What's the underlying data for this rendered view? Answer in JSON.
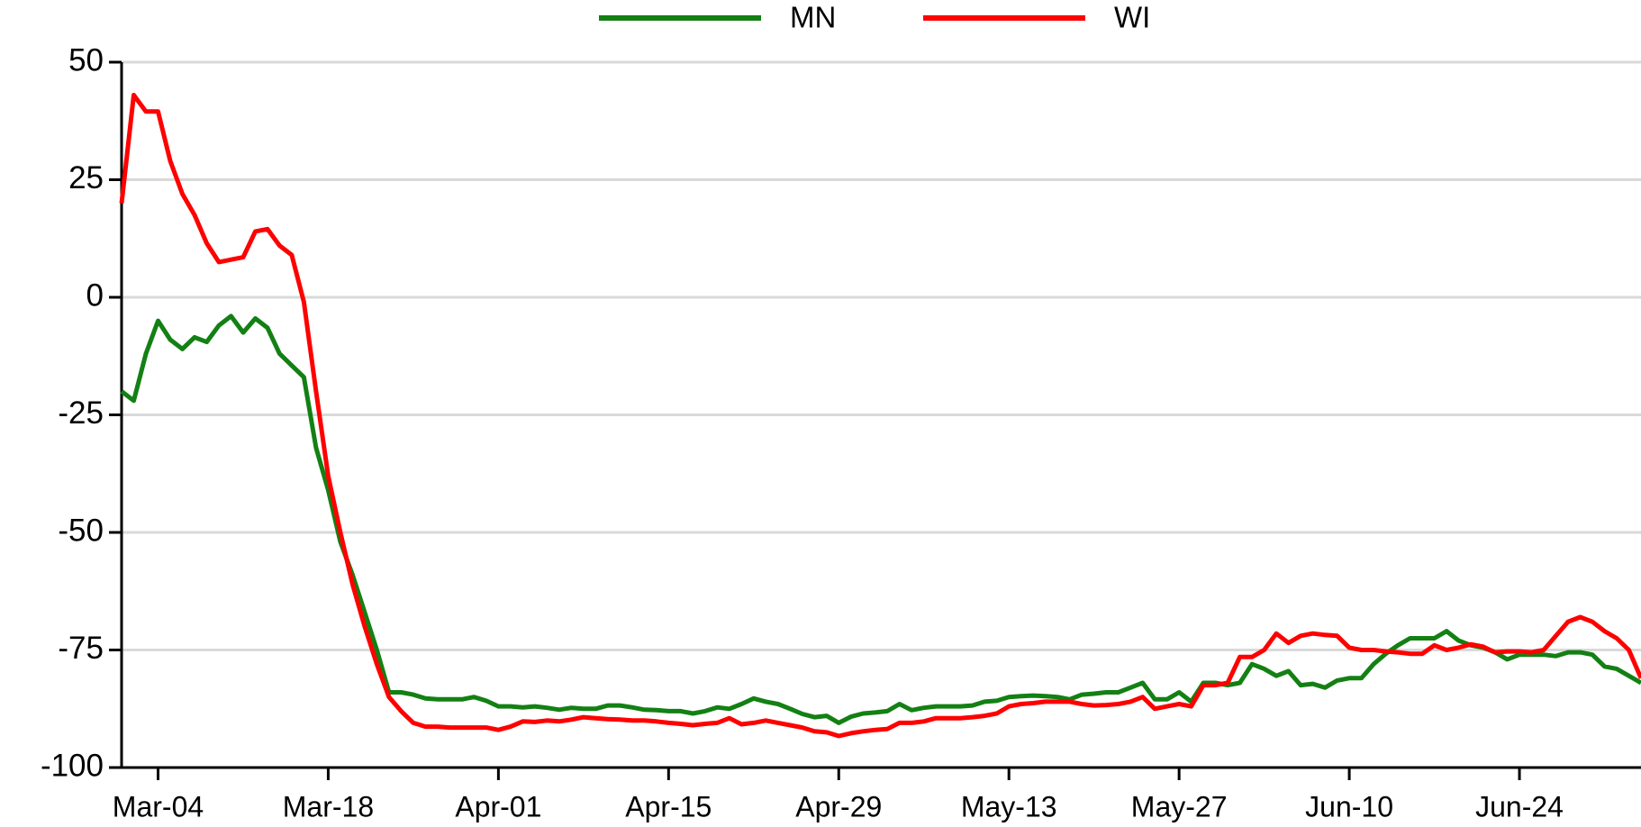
{
  "chart_data": {
    "type": "line",
    "categories": [
      null,
      null,
      null,
      "Mar-04",
      null,
      null,
      null,
      null,
      null,
      null,
      null,
      null,
      null,
      null,
      null,
      null,
      null,
      "Mar-18",
      null,
      null,
      null,
      null,
      null,
      null,
      null,
      null,
      null,
      null,
      null,
      null,
      null,
      "Apr-01",
      null,
      null,
      null,
      null,
      null,
      null,
      null,
      null,
      null,
      null,
      null,
      null,
      null,
      "Apr-15",
      null,
      null,
      null,
      null,
      null,
      null,
      null,
      null,
      null,
      null,
      null,
      null,
      null,
      "Apr-29",
      null,
      null,
      null,
      null,
      null,
      null,
      null,
      null,
      null,
      null,
      null,
      null,
      null,
      "May-13",
      null,
      null,
      null,
      null,
      null,
      null,
      null,
      null,
      null,
      null,
      null,
      null,
      null,
      "May-27",
      null,
      null,
      null,
      null,
      null,
      null,
      null,
      null,
      null,
      null,
      null,
      null,
      null,
      "Jun-10",
      null,
      null,
      null,
      null,
      null,
      null,
      null,
      null,
      null,
      null,
      null,
      null,
      null,
      "Jun-24",
      null,
      null,
      null,
      null,
      null,
      null,
      null,
      null,
      null,
      null
    ],
    "series": [
      {
        "name": "MN",
        "color": "#138013",
        "values": [
          -20,
          -22,
          -12,
          -5,
          -9,
          -11,
          -8.5,
          -9.5,
          -6,
          -4,
          -7.5,
          -4.5,
          -6.5,
          -12,
          -14.5,
          -17,
          -32,
          -41,
          -52,
          -59,
          -67,
          -75,
          -84,
          -84,
          -84.5,
          -85.3,
          -85.5,
          -85.5,
          -85.5,
          -85,
          -85.8,
          -87,
          -87,
          -87.2,
          -87,
          -87.3,
          -87.7,
          -87.3,
          -87.5,
          -87.5,
          -86.8,
          -86.8,
          -87.2,
          -87.7,
          -87.8,
          -88,
          -88,
          -88.5,
          -88,
          -87.2,
          -87.5,
          -86.5,
          -85.3,
          -86,
          -86.5,
          -87.5,
          -88.6,
          -89.3,
          -89,
          -90.5,
          -89.2,
          -88.5,
          -88.3,
          -88,
          -86.5,
          -87.8,
          -87.3,
          -87,
          -87,
          -87,
          -86.8,
          -86,
          -85.8,
          -85,
          -84.8,
          -84.7,
          -84.8,
          -85,
          -85.5,
          -84.5,
          -84.3,
          -84,
          -84,
          -83,
          -82,
          -85.5,
          -85.5,
          -84,
          -86,
          -82,
          -82,
          -82.5,
          -82,
          -78,
          -79,
          -80.5,
          -79.5,
          -82.5,
          -82.2,
          -83,
          -81.5,
          -81,
          -81,
          -78,
          -75.8,
          -74,
          -72.5,
          -72.5,
          -72.5,
          -71,
          -73,
          -74,
          -74.5,
          -75.5,
          -77,
          -76,
          -76,
          -76,
          -76.3,
          -75.5,
          -75.5,
          -76,
          -78.5,
          -79,
          -80.5,
          -82
        ]
      },
      {
        "name": "WI",
        "color": "#ff0000",
        "values": [
          20,
          43,
          39.5,
          39.5,
          29,
          22,
          17.5,
          11.5,
          7.5,
          8,
          8.5,
          14,
          14.5,
          11,
          9,
          -1,
          -20,
          -38,
          -50,
          -61,
          -70,
          -78,
          -85,
          -88,
          -90.5,
          -91.3,
          -91.3,
          -91.5,
          -91.5,
          -91.5,
          -91.5,
          -92,
          -91.3,
          -90.2,
          -90.3,
          -90,
          -90.2,
          -89.8,
          -89.3,
          -89.5,
          -89.7,
          -89.8,
          -90,
          -90,
          -90.2,
          -90.5,
          -90.7,
          -91,
          -90.7,
          -90.5,
          -89.5,
          -90.8,
          -90.5,
          -90,
          -90.5,
          -91,
          -91.5,
          -92.3,
          -92.5,
          -93.3,
          -92.7,
          -92.3,
          -92,
          -91.8,
          -90.5,
          -90.5,
          -90.2,
          -89.5,
          -89.5,
          -89.5,
          -89.3,
          -89,
          -88.5,
          -87,
          -86.5,
          -86.3,
          -86,
          -86,
          -86,
          -86.5,
          -86.8,
          -86.7,
          -86.5,
          -86,
          -85,
          -87.5,
          -87,
          -86.5,
          -87,
          -82.5,
          -82.5,
          -82,
          -76.5,
          -76.5,
          -75,
          -71.5,
          -73.5,
          -72,
          -71.5,
          -71.8,
          -72,
          -74.5,
          -75,
          -75,
          -75.3,
          -75.5,
          -75.8,
          -75.8,
          -74,
          -75,
          -74.5,
          -73.8,
          -74.3,
          -75.5,
          -75.3,
          -75.3,
          -75.5,
          -75,
          -72,
          -69,
          -68,
          -69,
          -71,
          -72.5,
          -75,
          -81
        ]
      }
    ],
    "ylim": [
      -100,
      50
    ],
    "yticks": [
      -100,
      -75,
      -50,
      -25,
      0,
      25,
      50
    ],
    "grid": true,
    "legend": "top"
  }
}
